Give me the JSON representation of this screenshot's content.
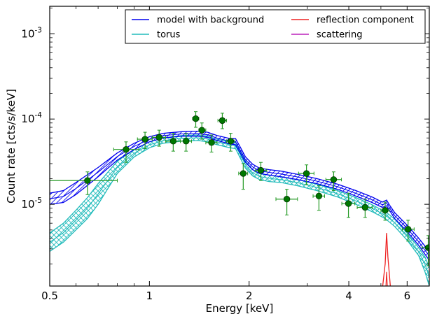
{
  "chart_data": {
    "type": "line",
    "xlabel": "Energy [keV]",
    "ylabel": "Count rate [cts/s/keV]",
    "xscale": "log",
    "yscale": "log",
    "xlim": [
      0.5,
      7.0
    ],
    "ylim": [
      1.1e-06,
      0.0021
    ],
    "x_ticks": [
      {
        "value": 0.5,
        "label": "0.5"
      },
      {
        "value": 1,
        "label": "1"
      },
      {
        "value": 2,
        "label": "2"
      },
      {
        "value": 4,
        "label": "4"
      },
      {
        "value": 6,
        "label": "6"
      }
    ],
    "y_ticks": [
      {
        "value": 1e-05,
        "base": "10",
        "exp": "-5"
      },
      {
        "value": 0.0001,
        "base": "10",
        "exp": "-4"
      },
      {
        "value": 0.001,
        "base": "10",
        "exp": "-3"
      }
    ],
    "legend": {
      "placement": "top-right",
      "columns": 2,
      "entries": [
        {
          "label": "model with background",
          "color": "#0000ee"
        },
        {
          "label": "torus",
          "color": "#22bbbb"
        },
        {
          "label": "reflection component",
          "color": "#ee2222"
        },
        {
          "label": "scattering",
          "color": "#bb22bb"
        }
      ]
    },
    "colors": {
      "model": "#0000ee",
      "torus": "#22bbbb",
      "reflection": "#ee2222",
      "scattering": "#bb22bb",
      "data": "#007700",
      "errorbar": "#229922"
    },
    "data_points": [
      {
        "x": 0.65,
        "y": 1.9e-05,
        "xlo": 0.5,
        "xhi": 0.8,
        "ylo": 1.3e-05,
        "yhi": 2.4e-05
      },
      {
        "x": 0.85,
        "y": 4.4e-05,
        "xlo": 0.78,
        "xhi": 0.93,
        "ylo": 3.1e-05,
        "yhi": 5.4e-05
      },
      {
        "x": 0.97,
        "y": 5.8e-05,
        "xlo": 0.92,
        "xhi": 1.02,
        "ylo": 4.5e-05,
        "yhi": 7e-05
      },
      {
        "x": 1.07,
        "y": 6.1e-05,
        "xlo": 1.02,
        "xhi": 1.12,
        "ylo": 4.8e-05,
        "yhi": 7.4e-05
      },
      {
        "x": 1.18,
        "y": 5.5e-05,
        "xlo": 1.12,
        "xhi": 1.24,
        "ylo": 4.2e-05,
        "yhi": 6.8e-05
      },
      {
        "x": 1.29,
        "y": 5.5e-05,
        "xlo": 1.24,
        "xhi": 1.34,
        "ylo": 4.2e-05,
        "yhi": 6.8e-05
      },
      {
        "x": 1.38,
        "y": 0.000101,
        "xlo": 1.35,
        "xhi": 1.41,
        "ylo": 8e-05,
        "yhi": 0.000122
      },
      {
        "x": 1.44,
        "y": 7.4e-05,
        "xlo": 1.41,
        "xhi": 1.48,
        "ylo": 5.8e-05,
        "yhi": 9e-05
      },
      {
        "x": 1.54,
        "y": 5.3e-05,
        "xlo": 1.48,
        "xhi": 1.6,
        "ylo": 4.1e-05,
        "yhi": 6.5e-05
      },
      {
        "x": 1.66,
        "y": 9.6e-05,
        "xlo": 1.61,
        "xhi": 1.71,
        "ylo": 7.7e-05,
        "yhi": 0.000117
      },
      {
        "x": 1.76,
        "y": 5.5e-05,
        "xlo": 1.71,
        "xhi": 1.81,
        "ylo": 4.2e-05,
        "yhi": 6.8e-05
      },
      {
        "x": 1.92,
        "y": 2.3e-05,
        "xlo": 1.86,
        "xhi": 1.98,
        "ylo": 1.5e-05,
        "yhi": 3e-05
      },
      {
        "x": 2.17,
        "y": 2.5e-05,
        "xlo": 2.09,
        "xhi": 2.26,
        "ylo": 1.9e-05,
        "yhi": 3.1e-05
      },
      {
        "x": 2.6,
        "y": 1.15e-05,
        "xlo": 2.41,
        "xhi": 2.8,
        "ylo": 7.5e-06,
        "yhi": 1.5e-05
      },
      {
        "x": 2.98,
        "y": 2.3e-05,
        "xlo": 2.82,
        "xhi": 3.14,
        "ylo": 1.7e-05,
        "yhi": 2.9e-05
      },
      {
        "x": 3.25,
        "y": 1.25e-05,
        "xlo": 3.12,
        "xhi": 3.38,
        "ylo": 8.5e-06,
        "yhi": 1.65e-05
      },
      {
        "x": 3.6,
        "y": 1.95e-05,
        "xlo": 3.41,
        "xhi": 3.8,
        "ylo": 1.45e-05,
        "yhi": 2.4e-05
      },
      {
        "x": 3.99,
        "y": 1.02e-05,
        "xlo": 3.81,
        "xhi": 4.17,
        "ylo": 7e-06,
        "yhi": 1.35e-05
      },
      {
        "x": 4.48,
        "y": 9.2e-06,
        "xlo": 4.24,
        "xhi": 4.71,
        "ylo": 7e-06,
        "yhi": 1.15e-05
      },
      {
        "x": 5.15,
        "y": 8.5e-06,
        "xlo": 5.0,
        "xhi": 5.3,
        "ylo": 6.5e-06,
        "yhi": 1.06e-05
      },
      {
        "x": 6.04,
        "y": 5.1e-06,
        "xlo": 5.8,
        "xhi": 6.3,
        "ylo": 3.7e-06,
        "yhi": 6.5e-06
      },
      {
        "x": 6.95,
        "y": 3.1e-06,
        "xlo": 6.65,
        "xhi": 7.25,
        "ylo": 1.9e-06,
        "yhi": 4.3e-06
      }
    ],
    "model_band": [
      {
        "x": 0.5,
        "lo": 1e-05,
        "hi": 1.35e-05
      },
      {
        "x": 0.55,
        "lo": 1.05e-05,
        "hi": 1.45e-05
      },
      {
        "x": 0.6,
        "lo": 1.3e-05,
        "hi": 1.8e-05
      },
      {
        "x": 0.7,
        "lo": 2.1e-05,
        "hi": 2.7e-05
      },
      {
        "x": 0.8,
        "lo": 3.3e-05,
        "hi": 4e-05
      },
      {
        "x": 0.9,
        "lo": 4.4e-05,
        "hi": 5.2e-05
      },
      {
        "x": 1.0,
        "lo": 5.4e-05,
        "hi": 6.2e-05
      },
      {
        "x": 1.1,
        "lo": 6e-05,
        "hi": 6.8e-05
      },
      {
        "x": 1.25,
        "lo": 6.3e-05,
        "hi": 7.1e-05
      },
      {
        "x": 1.4,
        "lo": 6.3e-05,
        "hi": 7.2e-05
      },
      {
        "x": 1.5,
        "lo": 6.1e-05,
        "hi": 7e-05
      },
      {
        "x": 1.6,
        "lo": 5.6e-05,
        "hi": 6.4e-05
      },
      {
        "x": 1.75,
        "lo": 5.1e-05,
        "hi": 5.9e-05
      },
      {
        "x": 1.82,
        "lo": 5e-05,
        "hi": 5.9e-05
      },
      {
        "x": 1.88,
        "lo": 4e-05,
        "hi": 4.7e-05
      },
      {
        "x": 1.95,
        "lo": 3.1e-05,
        "hi": 3.6e-05
      },
      {
        "x": 2.05,
        "lo": 2.55e-05,
        "hi": 2.95e-05
      },
      {
        "x": 2.15,
        "lo": 2.3e-05,
        "hi": 2.65e-05
      },
      {
        "x": 2.3,
        "lo": 2.2e-05,
        "hi": 2.55e-05
      },
      {
        "x": 2.5,
        "lo": 2.1e-05,
        "hi": 2.45e-05
      },
      {
        "x": 2.8,
        "lo": 1.95e-05,
        "hi": 2.25e-05
      },
      {
        "x": 3.2,
        "lo": 1.75e-05,
        "hi": 2e-05
      },
      {
        "x": 3.7,
        "lo": 1.5e-05,
        "hi": 1.72e-05
      },
      {
        "x": 4.2,
        "lo": 1.25e-05,
        "hi": 1.45e-05
      },
      {
        "x": 4.7,
        "lo": 1.05e-05,
        "hi": 1.22e-05
      },
      {
        "x": 5.05,
        "lo": 9.2e-06,
        "hi": 1.06e-05
      },
      {
        "x": 5.2,
        "lo": 9.6e-06,
        "hi": 1.12e-05
      },
      {
        "x": 5.3,
        "lo": 8.6e-06,
        "hi": 9.9e-06
      },
      {
        "x": 5.5,
        "lo": 6.8e-06,
        "hi": 8e-06
      },
      {
        "x": 6.0,
        "lo": 4.8e-06,
        "hi": 5.7e-06
      },
      {
        "x": 6.5,
        "lo": 3.3e-06,
        "hi": 4e-06
      },
      {
        "x": 7.0,
        "lo": 2.2e-06,
        "hi": 2.8e-06
      }
    ],
    "torus_band": [
      {
        "x": 0.5,
        "lo": 2.8e-06,
        "hi": 4.6e-06
      },
      {
        "x": 0.55,
        "lo": 3.6e-06,
        "hi": 6e-06
      },
      {
        "x": 0.6,
        "lo": 5e-06,
        "hi": 8.5e-06
      },
      {
        "x": 0.65,
        "lo": 6.8e-06,
        "hi": 1.2e-05
      },
      {
        "x": 0.7,
        "lo": 1e-05,
        "hi": 1.75e-05
      },
      {
        "x": 0.8,
        "lo": 2.3e-05,
        "hi": 3.2e-05
      },
      {
        "x": 0.9,
        "lo": 3.6e-05,
        "hi": 4.4e-05
      },
      {
        "x": 1.0,
        "lo": 4.6e-05,
        "hi": 5.4e-05
      },
      {
        "x": 1.1,
        "lo": 5.2e-05,
        "hi": 6e-05
      },
      {
        "x": 1.25,
        "lo": 5.5e-05,
        "hi": 6.4e-05
      },
      {
        "x": 1.4,
        "lo": 5.6e-05,
        "hi": 6.5e-05
      },
      {
        "x": 1.5,
        "lo": 5.4e-05,
        "hi": 6.3e-05
      },
      {
        "x": 1.6,
        "lo": 5e-05,
        "hi": 5.8e-05
      },
      {
        "x": 1.75,
        "lo": 4.6e-05,
        "hi": 5.4e-05
      },
      {
        "x": 1.82,
        "lo": 4.5e-05,
        "hi": 5.3e-05
      },
      {
        "x": 1.88,
        "lo": 3.5e-05,
        "hi": 4.2e-05
      },
      {
        "x": 1.95,
        "lo": 2.65e-05,
        "hi": 3.2e-05
      },
      {
        "x": 2.05,
        "lo": 2.15e-05,
        "hi": 2.55e-05
      },
      {
        "x": 2.15,
        "lo": 1.95e-05,
        "hi": 2.3e-05
      },
      {
        "x": 2.3,
        "lo": 1.85e-05,
        "hi": 2.2e-05
      },
      {
        "x": 2.5,
        "lo": 1.8e-05,
        "hi": 2.1e-05
      },
      {
        "x": 2.8,
        "lo": 1.65e-05,
        "hi": 1.95e-05
      },
      {
        "x": 3.2,
        "lo": 1.45e-05,
        "hi": 1.72e-05
      },
      {
        "x": 3.7,
        "lo": 1.22e-05,
        "hi": 1.45e-05
      },
      {
        "x": 4.2,
        "lo": 1e-05,
        "hi": 1.2e-05
      },
      {
        "x": 4.7,
        "lo": 8.2e-06,
        "hi": 9.9e-06
      },
      {
        "x": 5.05,
        "lo": 7.1e-06,
        "hi": 8.5e-06
      },
      {
        "x": 5.2,
        "lo": 6.6e-06,
        "hi": 8e-06
      },
      {
        "x": 5.5,
        "lo": 5.5e-06,
        "hi": 6.7e-06
      },
      {
        "x": 6.0,
        "lo": 3.8e-06,
        "hi": 4.6e-06
      },
      {
        "x": 6.5,
        "lo": 2.5e-06,
        "hi": 3.1e-06
      },
      {
        "x": 6.8,
        "lo": 1.6e-06,
        "hi": 2.4e-06
      },
      {
        "x": 7.0,
        "lo": 1.1e-06,
        "hi": 1.8e-06
      }
    ],
    "reflection": [
      {
        "x": 5.05,
        "y": 1e-06
      },
      {
        "x": 5.15,
        "y": 2e-06
      },
      {
        "x": 5.2,
        "y": 4.6e-06
      },
      {
        "x": 5.25,
        "y": 2.4e-06
      },
      {
        "x": 5.35,
        "y": 1e-06
      }
    ]
  }
}
